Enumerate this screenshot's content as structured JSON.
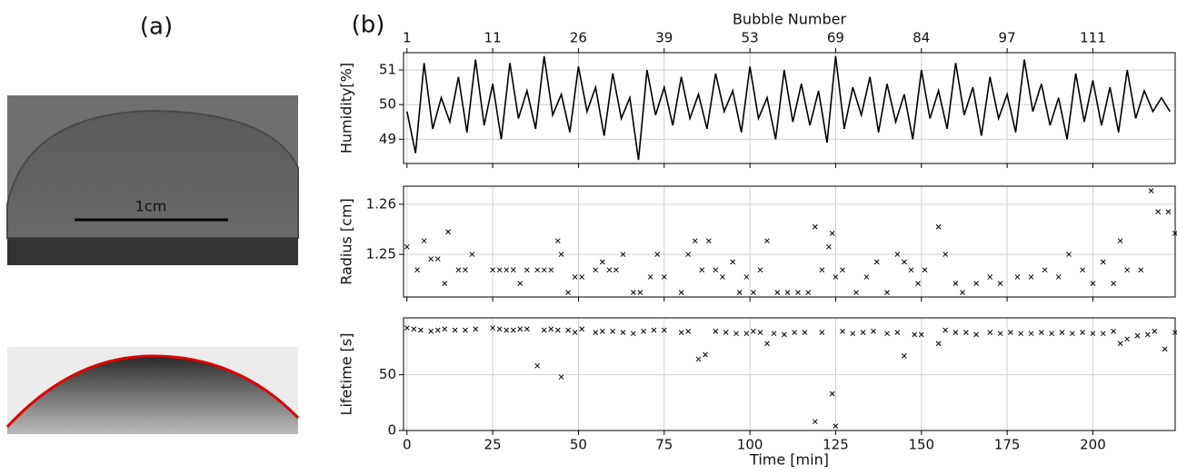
{
  "panel_a": {
    "label": "(a)",
    "scale_label": "1cm"
  },
  "panel_b": {
    "label": "(b)"
  },
  "chart_data": [
    {
      "type": "line",
      "ylabel": "Humidity[%]",
      "x2label": "Bubble Number",
      "color": "#000000",
      "xlim": [
        -1,
        224
      ],
      "xticks": [
        0,
        25,
        50,
        75,
        100,
        125,
        150,
        175,
        200
      ],
      "x2ticks": [
        {
          "value": 0,
          "label": "1"
        },
        {
          "value": 25,
          "label": "11"
        },
        {
          "value": 50,
          "label": "26"
        },
        {
          "value": 75,
          "label": "39"
        },
        {
          "value": 100,
          "label": "53"
        },
        {
          "value": 125,
          "label": "69"
        },
        {
          "value": 150,
          "label": "84"
        },
        {
          "value": 175,
          "label": "97"
        },
        {
          "value": 200,
          "label": "111"
        }
      ],
      "ylim": [
        48.3,
        51.5
      ],
      "yticks": [
        49,
        50,
        51
      ],
      "grid": true,
      "x": [
        0,
        2.5,
        5,
        7.5,
        10,
        12.5,
        15,
        17.5,
        20,
        22.5,
        25,
        27.5,
        30,
        32.5,
        35,
        37.5,
        40,
        42.5,
        45,
        47.5,
        50,
        52.5,
        55,
        57.5,
        60,
        62.5,
        65,
        67.5,
        70,
        72.5,
        75,
        77.5,
        80,
        82.5,
        85,
        87.5,
        90,
        92.5,
        95,
        97.5,
        100,
        102.5,
        105,
        107.5,
        110,
        112.5,
        115,
        117.5,
        120,
        122.5,
        125,
        127.5,
        130,
        132.5,
        135,
        137.5,
        140,
        142.5,
        145,
        147.5,
        150,
        152.5,
        155,
        157.5,
        160,
        162.5,
        165,
        167.5,
        170,
        172.5,
        175,
        177.5,
        180,
        182.5,
        185,
        187.5,
        190,
        192.5,
        195,
        197.5,
        200,
        202.5,
        205,
        207.5,
        210,
        212.5,
        215,
        217.5,
        220,
        222.5
      ],
      "values": [
        49.8,
        48.6,
        51.2,
        49.3,
        50.2,
        49.5,
        50.8,
        49.2,
        51.3,
        49.4,
        50.6,
        49.0,
        51.2,
        49.6,
        50.4,
        49.3,
        51.4,
        49.7,
        50.3,
        49.2,
        51.1,
        49.8,
        50.5,
        49.1,
        50.9,
        49.6,
        50.2,
        48.4,
        51.0,
        49.7,
        50.5,
        49.4,
        50.8,
        49.6,
        50.3,
        49.3,
        50.9,
        49.8,
        50.4,
        49.2,
        51.1,
        49.6,
        50.2,
        49.0,
        51.0,
        49.5,
        50.6,
        49.4,
        50.4,
        48.9,
        51.4,
        49.3,
        50.5,
        49.7,
        50.8,
        49.2,
        50.6,
        49.5,
        50.3,
        49.0,
        51.0,
        49.6,
        50.4,
        49.3,
        51.2,
        49.7,
        50.5,
        49.1,
        50.8,
        49.6,
        50.3,
        49.2,
        51.3,
        49.8,
        50.6,
        49.4,
        50.2,
        49.0,
        50.9,
        49.5,
        50.7,
        49.4,
        50.5,
        49.2,
        51.0,
        49.6,
        50.4,
        49.8,
        50.2,
        49.8
      ]
    },
    {
      "type": "scatter",
      "ylabel": "Radius [cm]",
      "color": "#000000",
      "xlim": [
        -1,
        224
      ],
      "xticks": [
        0,
        25,
        50,
        75,
        100,
        125,
        150,
        175,
        200
      ],
      "ylim": [
        1.2415,
        1.2636
      ],
      "yticks": [
        1.25,
        1.26
      ],
      "grid": true,
      "x": [
        0,
        3,
        5,
        7,
        9,
        11,
        12,
        15,
        17,
        19,
        25,
        27,
        29,
        31,
        33,
        35,
        38,
        40,
        42,
        44,
        45,
        47,
        49,
        51,
        55,
        57,
        59,
        61,
        63,
        66,
        68,
        71,
        73,
        75,
        80,
        82,
        84,
        86,
        88,
        90,
        92,
        95,
        97,
        99,
        101,
        103,
        105,
        108,
        111,
        114,
        117,
        119,
        121,
        123,
        124,
        125,
        127,
        131,
        134,
        137,
        140,
        143,
        145,
        147,
        149,
        151,
        155,
        157,
        160,
        162,
        166,
        170,
        173,
        178,
        182,
        186,
        190,
        193,
        197,
        200,
        203,
        206,
        208,
        210,
        214,
        217,
        219,
        222,
        224
      ],
      "values": [
        1.2515,
        1.2469,
        1.2527,
        1.2491,
        1.2491,
        1.2442,
        1.2545,
        1.2469,
        1.2469,
        1.25,
        1.2469,
        1.2469,
        1.2469,
        1.2469,
        1.2442,
        1.2469,
        1.2469,
        1.2469,
        1.2469,
        1.2527,
        1.25,
        1.2424,
        1.2455,
        1.2455,
        1.2469,
        1.2485,
        1.2469,
        1.2469,
        1.25,
        1.2424,
        1.2424,
        1.2455,
        1.25,
        1.2455,
        1.2424,
        1.25,
        1.2527,
        1.2469,
        1.2527,
        1.2469,
        1.2455,
        1.2485,
        1.2424,
        1.2455,
        1.2424,
        1.2469,
        1.2527,
        1.2424,
        1.2424,
        1.2424,
        1.2424,
        1.2555,
        1.2469,
        1.2515,
        1.2542,
        1.2455,
        1.2469,
        1.2424,
        1.2455,
        1.2485,
        1.2424,
        1.25,
        1.2485,
        1.2469,
        1.2442,
        1.2469,
        1.2555,
        1.25,
        1.2442,
        1.2424,
        1.2442,
        1.2455,
        1.2442,
        1.2455,
        1.2455,
        1.2469,
        1.2455,
        1.25,
        1.2469,
        1.2442,
        1.2485,
        1.2442,
        1.2527,
        1.2469,
        1.2469,
        1.2627,
        1.2585,
        1.2585,
        1.2542
      ]
    },
    {
      "type": "scatter",
      "ylabel": "Lifetime [s]",
      "xlabel": "Time [min]",
      "color": "#000000",
      "xlim": [
        -1,
        224
      ],
      "xticks": [
        0,
        25,
        50,
        75,
        100,
        125,
        150,
        175,
        200
      ],
      "ylim": [
        0,
        101
      ],
      "yticks": [
        0,
        50
      ],
      "grid": true,
      "x": [
        0,
        2,
        4,
        7,
        9,
        11,
        14,
        17,
        20,
        25,
        27,
        29,
        31,
        33,
        35,
        38,
        40,
        42,
        44,
        45,
        47,
        49,
        51,
        55,
        57,
        60,
        63,
        66,
        69,
        72,
        75,
        80,
        82,
        85,
        87,
        90,
        93,
        96,
        99,
        101,
        103,
        105,
        107,
        110,
        113,
        116,
        119,
        121,
        124,
        125,
        127,
        130,
        133,
        136,
        140,
        143,
        145,
        148,
        150,
        155,
        157,
        160,
        163,
        166,
        170,
        173,
        176,
        179,
        182,
        185,
        188,
        191,
        194,
        197,
        200,
        203,
        206,
        208,
        210,
        213,
        216,
        218,
        221,
        224
      ],
      "values": [
        92,
        91,
        90,
        89,
        90,
        91,
        90,
        90,
        91,
        92,
        91,
        90,
        90,
        91,
        91,
        58,
        90,
        91,
        90,
        48,
        90,
        88,
        91,
        88,
        89,
        89,
        88,
        87,
        89,
        90,
        90,
        88,
        89,
        64,
        68,
        89,
        88,
        87,
        87,
        89,
        88,
        78,
        87,
        86,
        88,
        88,
        8,
        88,
        33,
        4,
        89,
        87,
        88,
        89,
        87,
        88,
        67,
        86,
        86,
        78,
        90,
        88,
        88,
        86,
        88,
        87,
        88,
        87,
        87,
        88,
        87,
        88,
        87,
        88,
        87,
        87,
        89,
        78,
        82,
        85,
        86,
        89,
        73,
        88
      ]
    }
  ]
}
